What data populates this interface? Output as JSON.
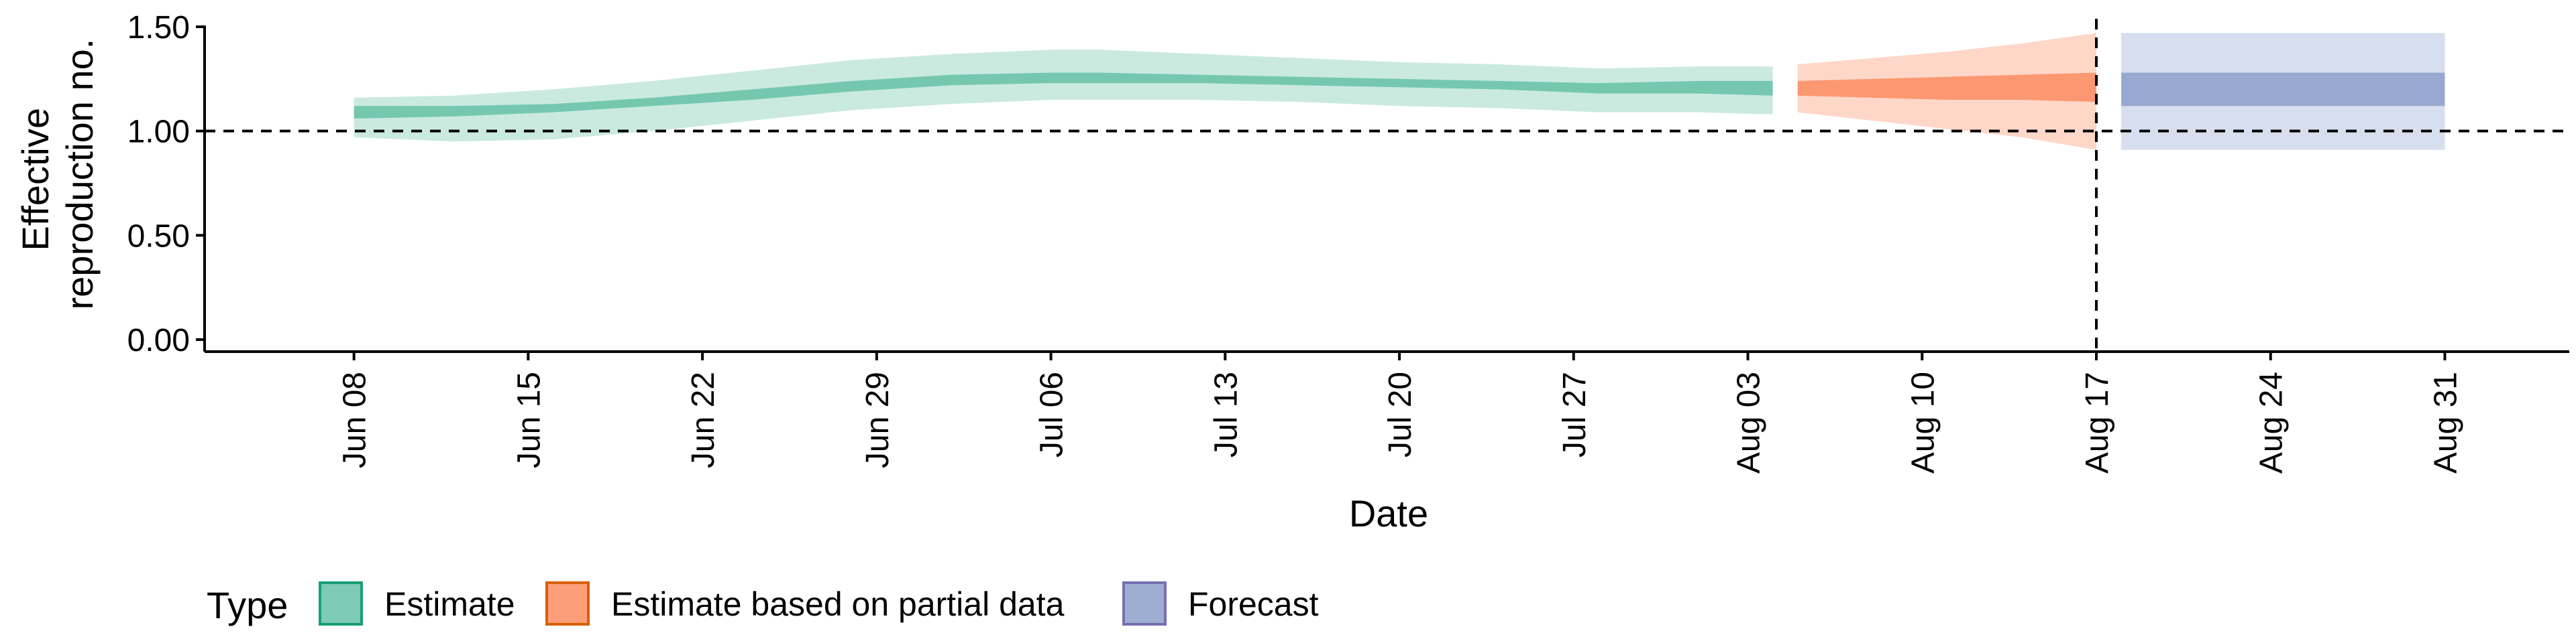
{
  "chart_data": {
    "type": "area",
    "xlabel": "Date",
    "ylabel": [
      "Effective",
      "reproduction no."
    ],
    "ylim": [
      0,
      1.5
    ],
    "y_ticks": [
      0,
      0.5,
      1.0,
      1.5
    ],
    "y_tick_labels": [
      "0.00",
      "0.50",
      "1.00",
      "1.50"
    ],
    "x_range": [
      "2020-06-02",
      "2020-09-05"
    ],
    "x_ticks": [
      "2020-06-08",
      "2020-06-15",
      "2020-06-22",
      "2020-06-29",
      "2020-07-06",
      "2020-07-13",
      "2020-07-20",
      "2020-07-27",
      "2020-08-03",
      "2020-08-10",
      "2020-08-17",
      "2020-08-24",
      "2020-08-31"
    ],
    "x_tick_labels": [
      "Jun 08",
      "Jun 15",
      "Jun 22",
      "Jun 29",
      "Jul 06",
      "Jul 13",
      "Jul 20",
      "Jul 27",
      "Aug 03",
      "Aug 10",
      "Aug 17",
      "Aug 24",
      "Aug 31"
    ],
    "reference_lines": {
      "horizontal_y": 1.0,
      "vertical_x": "2020-08-17",
      "style": "dashed"
    },
    "grid": false,
    "legend": {
      "title": "Type",
      "position": "bottom-left",
      "entries": [
        "Estimate",
        "Estimate based on partial data",
        "Forecast"
      ]
    },
    "colors": {
      "Estimate": {
        "fill": "#66c2a5",
        "border": "#1b9e77"
      },
      "Estimate based on partial data": {
        "fill": "#fc8d62",
        "border": "#d95f02"
      },
      "Forecast": {
        "fill": "#8da0cb",
        "border": "#7570b3"
      }
    },
    "series": [
      {
        "name": "Estimate",
        "x": [
          "2020-06-08",
          "2020-06-12",
          "2020-06-16",
          "2020-06-20",
          "2020-06-24",
          "2020-06-28",
          "2020-07-02",
          "2020-07-06",
          "2020-07-08",
          "2020-07-12",
          "2020-07-16",
          "2020-07-20",
          "2020-07-24",
          "2020-07-28",
          "2020-08-01",
          "2020-08-04"
        ],
        "median": [
          1.09,
          1.09,
          1.11,
          1.14,
          1.17,
          1.21,
          1.24,
          1.26,
          1.26,
          1.25,
          1.24,
          1.23,
          1.22,
          1.21,
          1.21,
          1.2
        ],
        "lower_50": [
          1.06,
          1.07,
          1.09,
          1.12,
          1.15,
          1.19,
          1.22,
          1.23,
          1.23,
          1.23,
          1.22,
          1.21,
          1.2,
          1.18,
          1.18,
          1.17
        ],
        "upper_50": [
          1.12,
          1.12,
          1.13,
          1.16,
          1.2,
          1.24,
          1.27,
          1.28,
          1.28,
          1.27,
          1.26,
          1.25,
          1.24,
          1.23,
          1.24,
          1.24
        ],
        "lower_90": [
          0.97,
          0.95,
          0.96,
          1.0,
          1.05,
          1.1,
          1.13,
          1.15,
          1.15,
          1.15,
          1.14,
          1.12,
          1.11,
          1.09,
          1.09,
          1.08
        ],
        "upper_90": [
          1.16,
          1.17,
          1.2,
          1.24,
          1.29,
          1.34,
          1.37,
          1.39,
          1.39,
          1.37,
          1.35,
          1.33,
          1.32,
          1.3,
          1.31,
          1.31
        ]
      },
      {
        "name": "Estimate based on partial data",
        "x": [
          "2020-08-05",
          "2020-08-08",
          "2020-08-11",
          "2020-08-14",
          "2020-08-17"
        ],
        "median": [
          1.2,
          1.2,
          1.21,
          1.22,
          1.22
        ],
        "lower_50": [
          1.17,
          1.16,
          1.15,
          1.15,
          1.14
        ],
        "upper_50": [
          1.24,
          1.25,
          1.26,
          1.27,
          1.28
        ],
        "lower_90": [
          1.09,
          1.05,
          1.01,
          0.97,
          0.91
        ],
        "upper_90": [
          1.32,
          1.35,
          1.38,
          1.42,
          1.47
        ]
      },
      {
        "name": "Forecast",
        "x": [
          "2020-08-18",
          "2020-08-31"
        ],
        "median": [
          1.2,
          1.2
        ],
        "lower_50": [
          1.12,
          1.12
        ],
        "upper_50": [
          1.28,
          1.28
        ],
        "lower_90": [
          0.91,
          0.91
        ],
        "upper_90": [
          1.47,
          1.47
        ]
      }
    ]
  }
}
